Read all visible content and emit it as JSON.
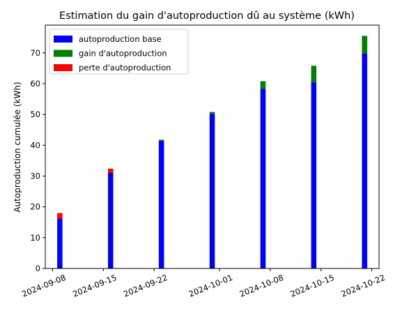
{
  "chart_data": {
    "type": "bar",
    "stacked": true,
    "title": "Estimation du gain d'autoproduction dû au système (kWh)",
    "xlabel": "",
    "ylabel": "Autoproduction cumulée (kWh)",
    "x_axis_type": "date",
    "xlim": [
      "2024-09-07",
      "2024-10-23"
    ],
    "ylim": [
      0,
      79
    ],
    "x_ticks": [
      "2024-09-08",
      "2024-09-15",
      "2024-09-22",
      "2024-10-01",
      "2024-10-08",
      "2024-10-15",
      "2024-10-22"
    ],
    "y_ticks": [
      0,
      10,
      20,
      30,
      40,
      50,
      60,
      70
    ],
    "grid": false,
    "legend_position": "top-left",
    "dates": [
      "2024-09-09",
      "2024-09-16",
      "2024-09-23",
      "2024-09-30",
      "2024-10-07",
      "2024-10-14",
      "2024-10-21"
    ],
    "series": [
      {
        "name": "autoproduction base",
        "color": "#0000ff",
        "values": [
          16.2,
          31.0,
          41.4,
          50.2,
          58.3,
          60.5,
          69.8
        ]
      },
      {
        "name": "gain d'autoproduction",
        "color": "#008000",
        "values": [
          0.0,
          0.0,
          0.4,
          0.6,
          2.5,
          5.3,
          5.7
        ]
      },
      {
        "name": "perte d'autoproduction",
        "color": "#ff0000",
        "values": [
          1.8,
          1.4,
          0.0,
          0.0,
          0.0,
          0.0,
          0.0
        ]
      }
    ]
  }
}
